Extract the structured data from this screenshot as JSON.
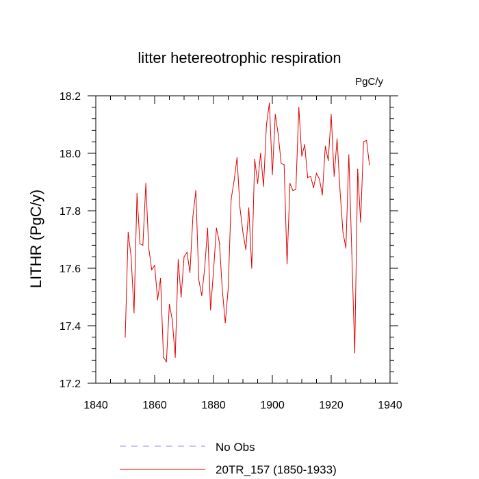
{
  "chart_data": {
    "type": "line",
    "title": "litter hetereotrophic respiration",
    "units_label": "PgC/y",
    "xlabel": "",
    "ylabel": "LITHR  (PgC/y)",
    "xlim": [
      1840,
      1940
    ],
    "ylim": [
      17.2,
      18.2
    ],
    "x_ticks": [
      1840,
      1860,
      1880,
      1900,
      1920,
      1940
    ],
    "y_ticks": [
      17.2,
      17.4,
      17.6,
      17.8,
      18.0,
      18.2
    ],
    "x_tick_labels": [
      "1840",
      "1860",
      "1880",
      "1900",
      "1920",
      "1940"
    ],
    "y_tick_labels": [
      "17.2",
      "17.4",
      "17.6",
      "17.8",
      "18.0",
      "18.2"
    ],
    "legend_position": "bottom",
    "series": [
      {
        "name": "20TR_157 (1850-1933)",
        "color": "#e00000",
        "x": [
          1850,
          1851,
          1852,
          1853,
          1854,
          1855,
          1856,
          1857,
          1858,
          1859,
          1860,
          1861,
          1862,
          1863,
          1864,
          1865,
          1866,
          1867,
          1868,
          1869,
          1870,
          1871,
          1872,
          1873,
          1874,
          1875,
          1876,
          1877,
          1878,
          1879,
          1880,
          1881,
          1882,
          1883,
          1884,
          1885,
          1886,
          1887,
          1888,
          1889,
          1890,
          1891,
          1892,
          1893,
          1894,
          1895,
          1896,
          1897,
          1898,
          1899,
          1900,
          1901,
          1902,
          1903,
          1904,
          1905,
          1906,
          1907,
          1908,
          1909,
          1910,
          1911,
          1912,
          1913,
          1914,
          1915,
          1916,
          1917,
          1918,
          1919,
          1920,
          1921,
          1922,
          1923,
          1924,
          1925,
          1926,
          1927,
          1928,
          1929,
          1930,
          1931,
          1932,
          1933
        ],
        "values": [
          17.36,
          17.725,
          17.64,
          17.445,
          17.86,
          17.685,
          17.68,
          17.895,
          17.67,
          17.595,
          17.61,
          17.49,
          17.565,
          17.29,
          17.275,
          17.475,
          17.42,
          17.29,
          17.63,
          17.5,
          17.64,
          17.655,
          17.585,
          17.78,
          17.87,
          17.56,
          17.505,
          17.6,
          17.74,
          17.455,
          17.59,
          17.74,
          17.69,
          17.525,
          17.41,
          17.53,
          17.84,
          17.905,
          17.985,
          17.81,
          17.725,
          17.665,
          17.81,
          17.6,
          17.98,
          17.895,
          18.0,
          17.885,
          18.1,
          18.175,
          17.925,
          18.135,
          18.065,
          17.965,
          17.96,
          17.615,
          17.895,
          17.87,
          17.875,
          18.16,
          17.99,
          18.03,
          17.915,
          17.92,
          17.88,
          17.93,
          17.91,
          17.855,
          18.025,
          17.975,
          18.135,
          17.92,
          18.05,
          17.87,
          17.725,
          17.67,
          17.995,
          17.655,
          17.305,
          17.945,
          17.76,
          18.04,
          18.045,
          17.96
        ]
      },
      {
        "name": "No Obs",
        "color": "#8c8cff",
        "x": [],
        "values": []
      }
    ]
  }
}
